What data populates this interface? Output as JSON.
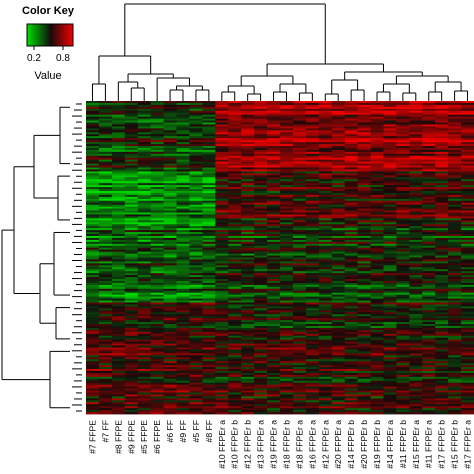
{
  "chart_data": {
    "type": "heatmap",
    "title": "",
    "xlabel": "",
    "ylabel": "",
    "color_key": {
      "title": "Color Key",
      "label": "Value",
      "ticks": [
        "0.2",
        "0.8"
      ],
      "range": [
        0.0,
        1.0
      ],
      "colors": [
        "#00ff00",
        "#000000",
        "#ff0000"
      ]
    },
    "columns": [
      "#7 FFPE",
      "#7 FF",
      "#8 FFPE",
      "#9 FFPE",
      "#5 FFPE",
      "#6 FFPE",
      "#6 FF",
      "#9 FF",
      "#5 FF",
      "#8 FF",
      "#10 FFPEr a",
      "#10 FFPEr b",
      "#12 FFPEr b",
      "#13 FFPEr a",
      "#19 FFPEr a",
      "#18 FFPEr b",
      "#18 FFPEr a",
      "#16 FFPEr a",
      "#12 FFPEr a",
      "#20 FFPEr a",
      "#14 FFPEr b",
      "#20 FFPEr b",
      "#19 FFPEr b",
      "#14 FFPEr a",
      "#11 FFPEr b",
      "#15 FFPEr a",
      "#11 FFPEr a",
      "#17 FFPEr b",
      "#15 FFPEr b",
      "#17 FFPEr a"
    ],
    "column_groups": [
      {
        "columns": [
          0,
          9
        ],
        "pattern": "low values in middle gene block"
      },
      {
        "columns": [
          10,
          29
        ],
        "pattern": "high values in top gene block"
      }
    ],
    "row_blocks": [
      {
        "rows": [
          0,
          0.22
        ],
        "group1_mean": 0.45,
        "group2_mean": 0.82
      },
      {
        "rows": [
          0.22,
          0.4
        ],
        "group1_mean": 0.2,
        "group2_mean": 0.6
      },
      {
        "rows": [
          0.4,
          0.64
        ],
        "group1_mean": 0.32,
        "group2_mean": 0.45
      },
      {
        "rows": [
          0.64,
          0.78
        ],
        "group1_mean": 0.55,
        "group2_mean": 0.5
      },
      {
        "rows": [
          0.78,
          1.0
        ],
        "group1_mean": 0.6,
        "group2_mean": 0.55
      }
    ],
    "grid": false,
    "legend": "top-left"
  }
}
